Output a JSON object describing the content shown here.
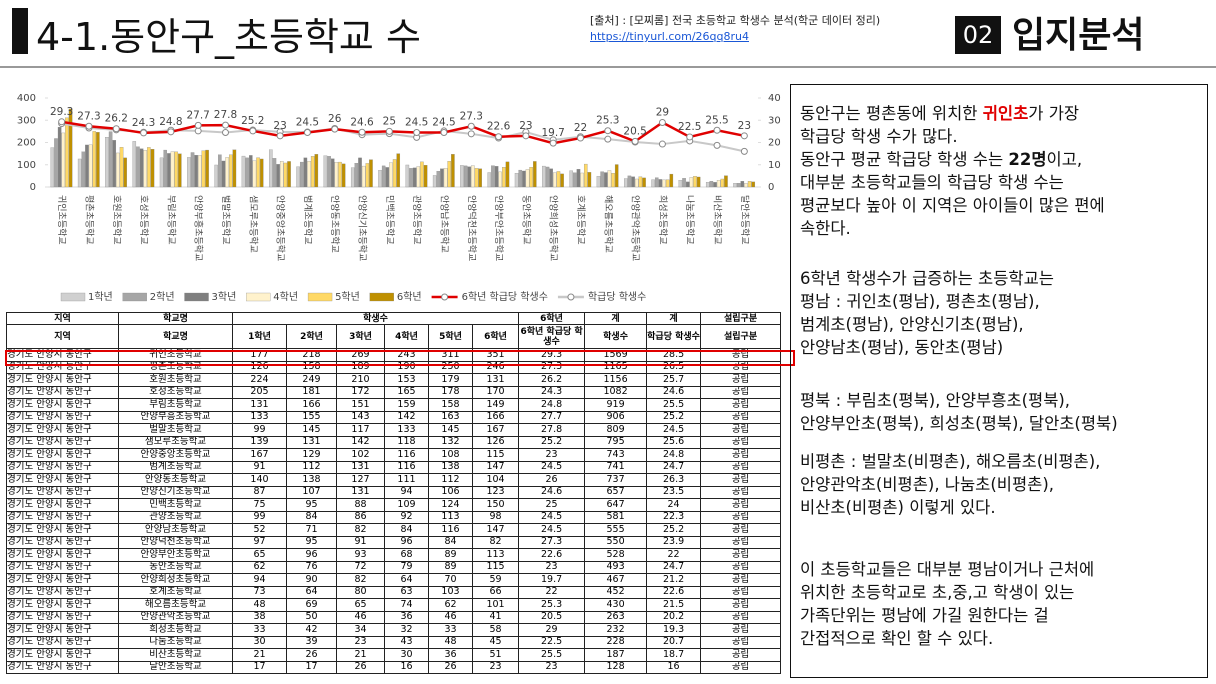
{
  "header": {
    "title": "4-1.동안구_초등학교 수",
    "source": "[출처] : [모찌롬] 전국 초등학교 학생수 분석(학군 데이터 정리)",
    "link": "https://tinyurl.com/26qq8ru4",
    "section_number": "02",
    "section_title": "입지분석"
  },
  "chart_data": {
    "type": "bar",
    "categories": [
      "귀인초등학교",
      "평촌초등학교",
      "호원초등학교",
      "호성초등학교",
      "부림초등학교",
      "안양부흥초등학교",
      "벌말초등학교",
      "샘모루초등학교",
      "안양중앙초등학교",
      "범계초등학교",
      "안양동초등학교",
      "안양신기초등학교",
      "민백초등학교",
      "관양초등학교",
      "안양남초등학교",
      "안양덕천초등학교",
      "안양부안초등학교",
      "동안초등학교",
      "안양희성초등학교",
      "호계초등학교",
      "해오름초등학교",
      "안양관악초등학교",
      "희성초등학교",
      "나눔초등학교",
      "비산초등학교",
      "달안초등학교"
    ],
    "ylim": [
      0,
      400
    ],
    "yticks": [
      0,
      100,
      200,
      300,
      400
    ],
    "y2lim": [
      0,
      40
    ],
    "y2ticks": [
      0,
      10,
      20,
      30,
      40
    ],
    "grid": false,
    "series": [
      {
        "name": "1학년",
        "color": "#d0d0d0",
        "values": [
          177,
          126,
          224,
          205,
          131,
          133,
          99,
          139,
          167,
          91,
          140,
          87,
          75,
          99,
          52,
          97,
          65,
          62,
          94,
          73,
          48,
          38,
          33,
          30,
          21,
          17
        ]
      },
      {
        "name": "2학년",
        "color": "#a6a6a6",
        "values": [
          218,
          158,
          249,
          181,
          166,
          155,
          145,
          131,
          129,
          112,
          138,
          107,
          95,
          84,
          71,
          95,
          96,
          76,
          90,
          64,
          69,
          50,
          42,
          39,
          26,
          17
        ]
      },
      {
        "name": "3학년",
        "color": "#7f7f7f",
        "values": [
          269,
          189,
          210,
          172,
          151,
          143,
          117,
          142,
          102,
          131,
          127,
          131,
          88,
          86,
          82,
          91,
          93,
          72,
          82,
          80,
          65,
          46,
          34,
          23,
          21,
          26
        ]
      },
      {
        "name": "4학년",
        "color": "#fff2cc",
        "values": [
          243,
          190,
          153,
          165,
          159,
          142,
          133,
          118,
          116,
          116,
          111,
          94,
          109,
          92,
          84,
          96,
          68,
          79,
          64,
          63,
          74,
          36,
          32,
          43,
          30,
          16
        ]
      },
      {
        "name": "5학년",
        "color": "#ffd966",
        "values": [
          311,
          250,
          179,
          178,
          158,
          163,
          145,
          132,
          108,
          138,
          112,
          106,
          124,
          113,
          116,
          84,
          89,
          89,
          70,
          103,
          62,
          46,
          33,
          48,
          36,
          26
        ]
      },
      {
        "name": "6학년",
        "color": "#bf9000",
        "values": [
          351,
          246,
          131,
          170,
          149,
          166,
          167,
          126,
          115,
          147,
          104,
          123,
          150,
          98,
          147,
          82,
          113,
          115,
          59,
          66,
          101,
          41,
          58,
          45,
          51,
          23
        ]
      },
      {
        "name": "6학년 학급당 학생수",
        "color": "#e00000",
        "axis": "y2",
        "data_labels": true,
        "values": [
          29.3,
          27.3,
          26.2,
          24.3,
          24.8,
          27.7,
          27.8,
          25.2,
          23,
          24.5,
          26,
          24.6,
          25,
          24.5,
          24.5,
          27.3,
          22.6,
          23,
          19.7,
          22,
          25.3,
          20.5,
          29,
          22.5,
          25.5,
          23
        ]
      },
      {
        "name": "학급당 학생수",
        "color": "#c8c8c8",
        "axis": "y2",
        "values": [
          28.5,
          26.5,
          25.7,
          24.6,
          25.5,
          25.2,
          24.5,
          25.6,
          24.8,
          24.7,
          26.3,
          23.5,
          24,
          22.3,
          25.2,
          23.9,
          22,
          24.7,
          21.2,
          22.6,
          21.5,
          20.2,
          19.3,
          20.7,
          18.7,
          16
        ]
      }
    ]
  },
  "table": {
    "header1": [
      "지역",
      "학교명",
      "학생수",
      "6학년",
      "계",
      "계",
      "설립구분"
    ],
    "header2": [
      "지역",
      "학교명",
      "1학년",
      "2학년",
      "3학년",
      "4학년",
      "5학년",
      "6학년",
      "6학년 학급당 학생수",
      "학생수",
      "학급당 학생수",
      "설립구분"
    ],
    "rows": [
      [
        "경기도 안양시 동안구",
        "귀인초등학교",
        177,
        218,
        269,
        243,
        311,
        351,
        29.3,
        1569,
        28.5,
        "공립"
      ],
      [
        "경기도 안양시 동안구",
        "평촌초등학교",
        126,
        158,
        189,
        190,
        250,
        246,
        27.3,
        1165,
        26.5,
        "공립"
      ],
      [
        "경기도 안양시 동안구",
        "호원초등학교",
        224,
        249,
        210,
        153,
        179,
        131,
        26.2,
        1156,
        25.7,
        "공립"
      ],
      [
        "경기도 안양시 동안구",
        "호성초등학교",
        205,
        181,
        172,
        165,
        178,
        170,
        24.3,
        1082,
        24.6,
        "공립"
      ],
      [
        "경기도 안양시 동안구",
        "부림초등학교",
        131,
        166,
        151,
        159,
        158,
        149,
        24.8,
        919,
        25.5,
        "공립"
      ],
      [
        "경기도 안양시 동안구",
        "안양부흥초등학교",
        133,
        155,
        143,
        142,
        163,
        166,
        27.7,
        906,
        25.2,
        "공립"
      ],
      [
        "경기도 안양시 동안구",
        "벌말초등학교",
        99,
        145,
        117,
        133,
        145,
        167,
        27.8,
        809,
        24.5,
        "공립"
      ],
      [
        "경기도 안양시 동안구",
        "샘모루초등학교",
        139,
        131,
        142,
        118,
        132,
        126,
        25.2,
        795,
        25.6,
        "공립"
      ],
      [
        "경기도 안양시 동안구",
        "안양중앙초등학교",
        167,
        129,
        102,
        116,
        108,
        115,
        23,
        743,
        24.8,
        "공립"
      ],
      [
        "경기도 안양시 동안구",
        "범계초등학교",
        91,
        112,
        131,
        116,
        138,
        147,
        24.5,
        741,
        24.7,
        "공립"
      ],
      [
        "경기도 안양시 동안구",
        "안양동초등학교",
        140,
        138,
        127,
        111,
        112,
        104,
        26,
        737,
        26.3,
        "공립"
      ],
      [
        "경기도 안양시 동안구",
        "안양신기초등학교",
        87,
        107,
        131,
        94,
        106,
        123,
        24.6,
        657,
        23.5,
        "공립"
      ],
      [
        "경기도 안양시 동안구",
        "민백초등학교",
        75,
        95,
        88,
        109,
        124,
        150,
        25,
        647,
        24,
        "공립"
      ],
      [
        "경기도 안양시 동안구",
        "관양초등학교",
        99,
        84,
        86,
        92,
        113,
        98,
        24.5,
        581,
        22.3,
        "공립"
      ],
      [
        "경기도 안양시 동안구",
        "안양남초등학교",
        52,
        71,
        82,
        84,
        116,
        147,
        24.5,
        555,
        25.2,
        "공립"
      ],
      [
        "경기도 안양시 동안구",
        "안양덕천초등학교",
        97,
        95,
        91,
        96,
        84,
        82,
        27.3,
        550,
        23.9,
        "공립"
      ],
      [
        "경기도 안양시 동안구",
        "안양부안초등학교",
        65,
        96,
        93,
        68,
        89,
        113,
        22.6,
        528,
        22,
        "공립"
      ],
      [
        "경기도 안양시 동안구",
        "동안초등학교",
        62,
        76,
        72,
        79,
        89,
        115,
        23,
        493,
        24.7,
        "공립"
      ],
      [
        "경기도 안양시 동안구",
        "안양희성초등학교",
        94,
        90,
        82,
        64,
        70,
        59,
        19.7,
        467,
        21.2,
        "공립"
      ],
      [
        "경기도 안양시 동안구",
        "호계초등학교",
        73,
        64,
        80,
        63,
        103,
        66,
        22,
        452,
        22.6,
        "공립"
      ],
      [
        "경기도 안양시 동안구",
        "해오름초등학교",
        48,
        69,
        65,
        74,
        62,
        101,
        25.3,
        430,
        21.5,
        "공립"
      ],
      [
        "경기도 안양시 동안구",
        "안양관악초등학교",
        38,
        50,
        46,
        36,
        46,
        41,
        20.5,
        263,
        20.2,
        "공립"
      ],
      [
        "경기도 안양시 동안구",
        "희성초등학교",
        33,
        42,
        34,
        32,
        33,
        58,
        29,
        232,
        19.3,
        "공립"
      ],
      [
        "경기도 안양시 동안구",
        "나눔초등학교",
        30,
        39,
        23,
        43,
        48,
        45,
        22.5,
        228,
        20.7,
        "공립"
      ],
      [
        "경기도 안양시 동안구",
        "비산초등학교",
        21,
        26,
        21,
        30,
        36,
        51,
        25.5,
        187,
        18.7,
        "공립"
      ],
      [
        "경기도 안양시 동안구",
        "달안초등학교",
        17,
        17,
        26,
        16,
        26,
        23,
        23,
        128,
        16,
        "공립"
      ]
    ]
  },
  "notes": {
    "p1": {
      "l1": [
        "동안구는 평촌동에 위치한 ",
        "귀인초",
        "가 가장"
      ],
      "l2": "학급당 학생 수가 많다.",
      "l3": [
        "동안구 평균 학급당 학생 수는 ",
        "22명",
        "이고,"
      ],
      "l4": "대부분 초등학교들의 학급당 학생 수는",
      "l5": "평균보다 높아 이 지역은 아이들이 많은 편에",
      "l6": "속한다."
    },
    "paragraphs": [
      [
        "6학년 학생수가 급증하는 초등학교는",
        "평남 : 귀인초(평남), 평촌초(평남),",
        "범계초(평남), 안양신기초(평남),",
        "안양남초(평남), 동안초(평남)"
      ],
      [
        "평북 : 부림초(평북), 안양부흥초(평북),",
        "안양부안초(평북), 희성초(평북), 달안초(평북)"
      ],
      [
        "비평촌 : 벌말초(비평촌), 해오름초(비평촌),",
        "안양관악초(비평촌), 나눔초(비평촌),",
        "비산초(비평촌) 이렇게 있다."
      ],
      [
        "이 초등학교들은 대부분 평남이거나 근처에",
        "위치한 초등학교로 초,중,고 학생이 있는",
        "가족단위는 평남에 가길 원한다는 걸",
        "간접적으로 확인 할 수 있다."
      ]
    ]
  }
}
